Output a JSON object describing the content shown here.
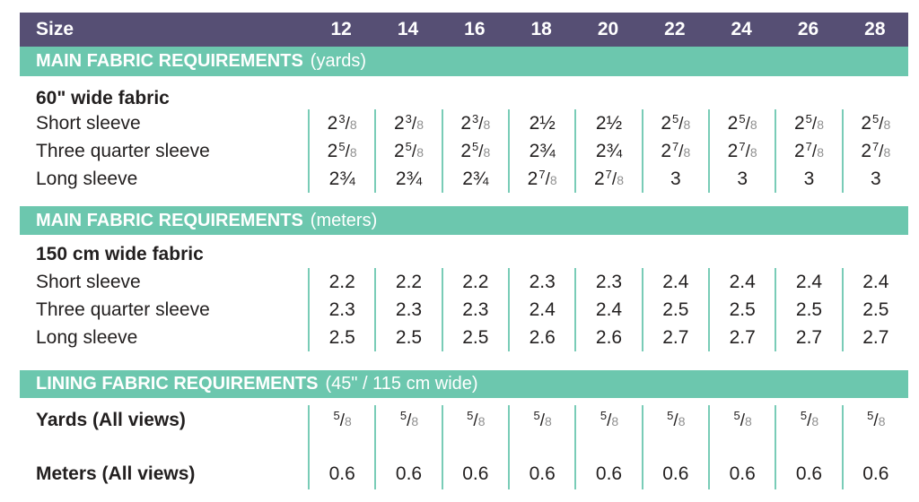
{
  "colors": {
    "purple": "#564F74",
    "teal": "#6CC7AE",
    "line": "#79CCB7",
    "den": "#8F8F8F",
    "text": "#221F1F"
  },
  "size_header": {
    "label": "Size",
    "sizes": [
      "12",
      "14",
      "16",
      "18",
      "20",
      "22",
      "24",
      "26",
      "28"
    ]
  },
  "sections": [
    {
      "id": "yards",
      "title": "MAIN FABRIC REQUIREMENTS",
      "unit": "(yards)",
      "subtitle": "60\" wide fabric",
      "rows": [
        {
          "label": "Short sleeve",
          "values": [
            "2 3/8",
            "2 3/8",
            "2 3/8",
            "2 1/2",
            "2 1/2",
            "2 5/8",
            "2 5/8",
            "2 5/8",
            "2 5/8"
          ]
        },
        {
          "label": "Three quarter sleeve",
          "values": [
            "2 5/8",
            "2 5/8",
            "2 5/8",
            "2 3/4",
            "2 3/4",
            "2 7/8",
            "2 7/8",
            "2 7/8",
            "2 7/8"
          ]
        },
        {
          "label": "Long sleeve",
          "values": [
            "2 3/4",
            "2 3/4",
            "2 3/4",
            "2 7/8",
            "2 7/8",
            "3",
            "3",
            "3",
            "3"
          ]
        }
      ]
    },
    {
      "id": "meters",
      "title": "MAIN FABRIC REQUIREMENTS",
      "unit": "(meters)",
      "subtitle": "150 cm wide fabric",
      "rows": [
        {
          "label": "Short sleeve",
          "values": [
            "2.2",
            "2.2",
            "2.2",
            "2.3",
            "2.3",
            "2.4",
            "2.4",
            "2.4",
            "2.4"
          ]
        },
        {
          "label": "Three quarter sleeve",
          "values": [
            "2.3",
            "2.3",
            "2.3",
            "2.4",
            "2.4",
            "2.5",
            "2.5",
            "2.5",
            "2.5"
          ]
        },
        {
          "label": "Long sleeve",
          "values": [
            "2.5",
            "2.5",
            "2.5",
            "2.6",
            "2.6",
            "2.7",
            "2.7",
            "2.7",
            "2.7"
          ]
        }
      ]
    },
    {
      "id": "lining",
      "title": "LINING FABRIC REQUIREMENTS",
      "unit": "(45\" / 115 cm wide)",
      "rows": [
        {
          "label": "Yards (All views)",
          "values": [
            "5/8",
            "5/8",
            "5/8",
            "5/8",
            "5/8",
            "5/8",
            "5/8",
            "5/8",
            "5/8"
          ]
        },
        {
          "label": "Meters (All views)",
          "values": [
            "0.6",
            "0.6",
            "0.6",
            "0.6",
            "0.6",
            "0.6",
            "0.6",
            "0.6",
            "0.6"
          ]
        }
      ]
    }
  ]
}
